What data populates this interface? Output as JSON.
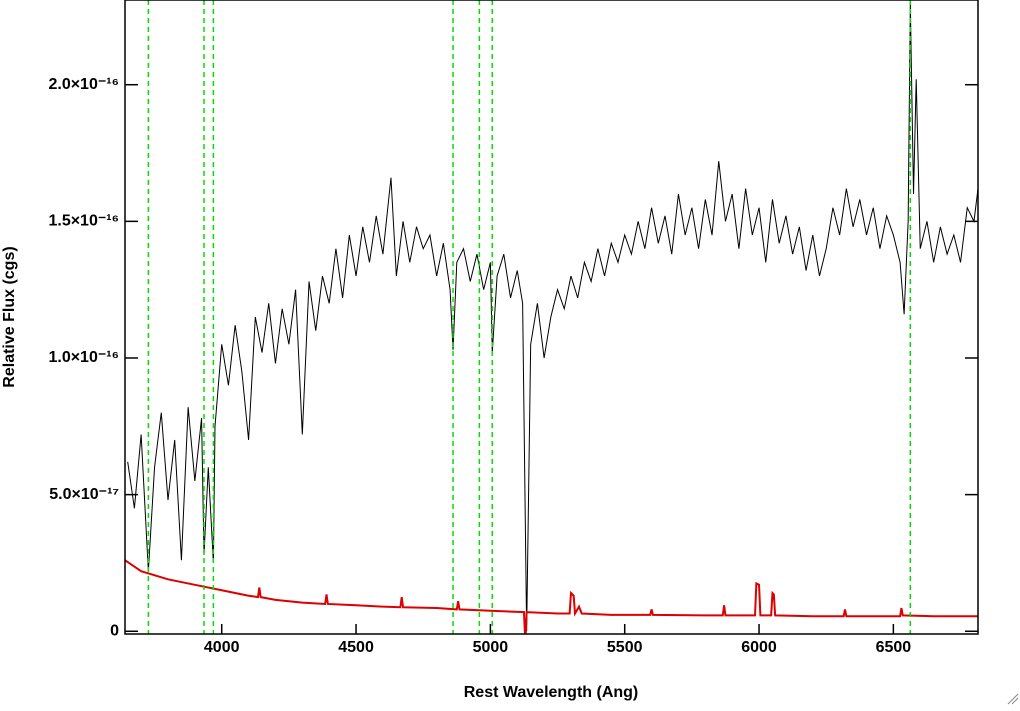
{
  "chart_data": {
    "type": "line",
    "x_label": "Rest Wavelength (Ang)",
    "y_label": "Relative Flux (cgs)",
    "xlim": [
      3640,
      6815
    ],
    "ylim": [
      -1e-18,
      2.31e-16
    ],
    "xticks": [
      4000,
      4500,
      5000,
      5500,
      6000,
      6500
    ],
    "yticks": [
      0,
      {
        "value": 5e-17,
        "label": "5.0×10⁻¹⁷"
      },
      {
        "value": 1e-16,
        "label": "1.0×10⁻¹⁶"
      },
      {
        "value": 1.5e-16,
        "label": "1.5×10⁻¹⁶"
      },
      {
        "value": 2e-16,
        "label": "2.0×10⁻¹⁶"
      }
    ],
    "vlines": {
      "color": "#00e000",
      "x": [
        3727,
        3934,
        3969,
        4861,
        4959,
        5007,
        6563
      ]
    },
    "series": [
      {
        "color": "#000000",
        "x": [
          3650,
          3675,
          3700,
          3727,
          3750,
          3775,
          3800,
          3825,
          3850,
          3875,
          3900,
          3925,
          3934,
          3950,
          3969,
          3975,
          4000,
          4025,
          4050,
          4075,
          4100,
          4125,
          4150,
          4175,
          4200,
          4225,
          4250,
          4275,
          4300,
          4325,
          4350,
          4375,
          4400,
          4425,
          4450,
          4475,
          4500,
          4525,
          4550,
          4575,
          4600,
          4630,
          4650,
          4675,
          4700,
          4725,
          4750,
          4775,
          4800,
          4825,
          4850,
          4861,
          4875,
          4900,
          4925,
          4950,
          4975,
          5000,
          5007,
          5025,
          5050,
          5075,
          5100,
          5120,
          5135,
          5150,
          5175,
          5200,
          5225,
          5250,
          5275,
          5300,
          5325,
          5350,
          5375,
          5400,
          5425,
          5450,
          5475,
          5500,
          5525,
          5550,
          5575,
          5600,
          5625,
          5650,
          5675,
          5700,
          5725,
          5750,
          5775,
          5800,
          5825,
          5850,
          5875,
          5900,
          5925,
          5950,
          5975,
          6000,
          6025,
          6050,
          6075,
          6100,
          6125,
          6150,
          6175,
          6200,
          6225,
          6250,
          6275,
          6300,
          6325,
          6350,
          6375,
          6400,
          6425,
          6450,
          6475,
          6500,
          6525,
          6540,
          6555,
          6563,
          6575,
          6585,
          6600,
          6625,
          6650,
          6675,
          6700,
          6725,
          6750,
          6775,
          6800,
          6815
        ],
        "values": [
          6.2e-17,
          4.5e-17,
          7.2e-17,
          2.2e-17,
          6e-17,
          8e-17,
          4.8e-17,
          7e-17,
          2.6e-17,
          8.2e-17,
          5.5e-17,
          7.8e-17,
          2.8e-17,
          6e-17,
          2.5e-17,
          7.5e-17,
          1.05e-16,
          9e-17,
          1.12e-16,
          9.5e-17,
          7e-17,
          1.15e-16,
          1.02e-16,
          1.2e-16,
          9.8e-17,
          1.18e-16,
          1.05e-16,
          1.25e-16,
          7.2e-17,
          1.28e-16,
          1.1e-16,
          1.3e-16,
          1.2e-16,
          1.4e-16,
          1.22e-16,
          1.45e-16,
          1.3e-16,
          1.48e-16,
          1.35e-16,
          1.52e-16,
          1.38e-16,
          1.66e-16,
          1.3e-16,
          1.5e-16,
          1.35e-16,
          1.48e-16,
          1.4e-16,
          1.45e-16,
          1.3e-16,
          1.42e-16,
          1.25e-16,
          1.03e-16,
          1.35e-16,
          1.4e-16,
          1.28e-16,
          1.38e-16,
          1.25e-16,
          1.35e-16,
          1.02e-16,
          1.3e-16,
          1.38e-16,
          1.22e-16,
          1.32e-16,
          1.2e-16,
          0,
          1.05e-16,
          1.2e-16,
          1e-16,
          1.15e-16,
          1.25e-16,
          1.18e-16,
          1.3e-16,
          1.22e-16,
          1.35e-16,
          1.28e-16,
          1.4e-16,
          1.3e-16,
          1.42e-16,
          1.35e-16,
          1.45e-16,
          1.38e-16,
          1.5e-16,
          1.4e-16,
          1.55e-16,
          1.42e-16,
          1.52e-16,
          1.38e-16,
          1.6e-16,
          1.45e-16,
          1.55e-16,
          1.4e-16,
          1.58e-16,
          1.45e-16,
          1.72e-16,
          1.5e-16,
          1.6e-16,
          1.4e-16,
          1.62e-16,
          1.45e-16,
          1.55e-16,
          1.35e-16,
          1.58e-16,
          1.42e-16,
          1.52e-16,
          1.38e-16,
          1.48e-16,
          1.32e-16,
          1.45e-16,
          1.3e-16,
          1.4e-16,
          1.55e-16,
          1.45e-16,
          1.62e-16,
          1.48e-16,
          1.58e-16,
          1.45e-16,
          1.55e-16,
          1.4e-16,
          1.52e-16,
          1.45e-16,
          1.35e-16,
          1.16e-16,
          1.5e-16,
          2.3e-16,
          1.6e-16,
          2.02e-16,
          1.4e-16,
          1.5e-16,
          1.35e-16,
          1.48e-16,
          1.38e-16,
          1.45e-16,
          1.35e-16,
          1.55e-16,
          1.5e-16,
          1.62e-16
        ]
      },
      {
        "color": "#dd0000",
        "x": [
          3640,
          3700,
          3800,
          3900,
          4000,
          4100,
          4135,
          4140,
          4145,
          4200,
          4300,
          4385,
          4390,
          4395,
          4500,
          4600,
          4665,
          4670,
          4675,
          4800,
          4875,
          4880,
          4885,
          5000,
          5125,
          5130,
          5135,
          5250,
          5295,
          5300,
          5310,
          5315,
          5330,
          5340,
          5450,
          5595,
          5600,
          5605,
          5800,
          5865,
          5870,
          5875,
          5985,
          5990,
          6000,
          6005,
          6045,
          6050,
          6055,
          6060,
          6200,
          6315,
          6320,
          6325,
          6525,
          6530,
          6535,
          6650,
          6815
        ],
        "values": [
          2.6e-17,
          2.2e-17,
          1.9e-17,
          1.7e-17,
          1.5e-17,
          1.3e-17,
          1.25e-17,
          1.6e-17,
          1.25e-17,
          1.15e-17,
          1.05e-17,
          1e-17,
          1.35e-17,
          1e-17,
          9.5e-18,
          9e-18,
          8.8e-18,
          1.25e-17,
          8.8e-18,
          8.5e-18,
          8e-18,
          1.1e-17,
          8e-18,
          7.5e-18,
          7e-18,
          -4e-18,
          7e-18,
          6.5e-18,
          6.5e-18,
          1.4e-17,
          1.3e-17,
          6.5e-18,
          9e-18,
          6.5e-18,
          6e-18,
          6e-18,
          8e-18,
          6e-18,
          5.8e-18,
          5.8e-18,
          9.5e-18,
          5.8e-18,
          5.8e-18,
          1.75e-17,
          1.7e-17,
          5.8e-18,
          5.8e-18,
          1.4e-17,
          1.35e-17,
          5.8e-18,
          5.5e-18,
          5.5e-18,
          8e-18,
          5.5e-18,
          5.5e-18,
          8.5e-18,
          5.8e-18,
          5.5e-18,
          5.5e-18
        ]
      }
    ]
  }
}
